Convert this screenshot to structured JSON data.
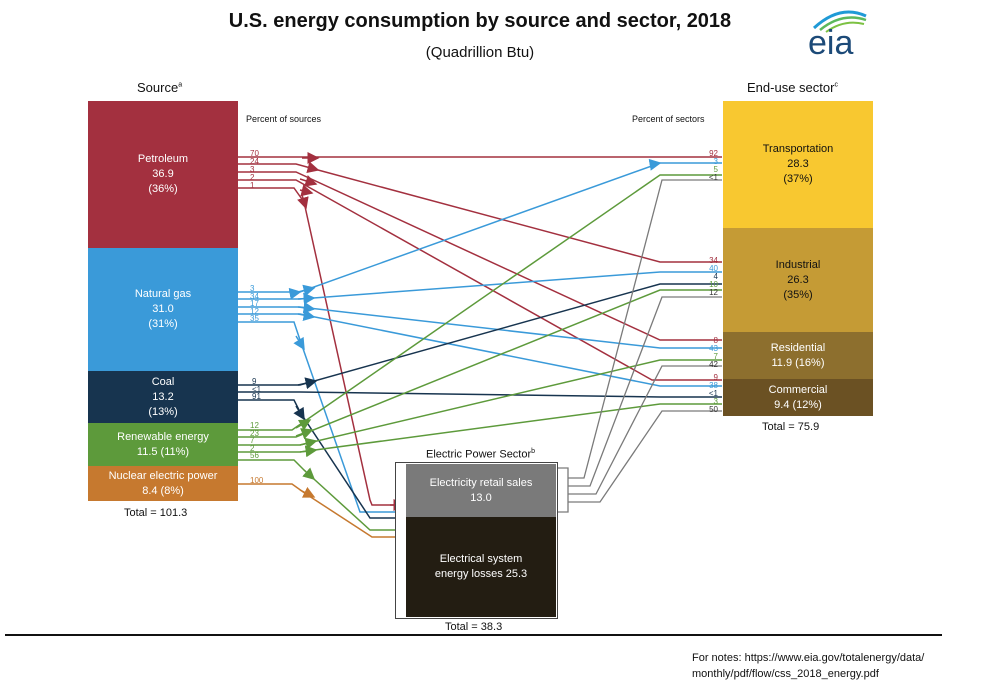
{
  "title": "U.S. energy consumption by source and sector, 2018",
  "subtitle": "(Quadrillion Btu)",
  "logo_text": "eia",
  "source_header": "Source",
  "source_header_sup": "a",
  "sector_header": "End-use sector",
  "sector_header_sup": "c",
  "percent_sources_label": "Percent of sources",
  "percent_sectors_label": "Percent of sectors",
  "power_header": "Electric Power Sector",
  "power_header_sup": "b",
  "sources": [
    {
      "name": "Petroleum",
      "value": "36.9",
      "pct": "(36%)",
      "color": "#a3303f"
    },
    {
      "name": "Natural gas",
      "value": "31.0",
      "pct": "(31%)",
      "color": "#3a9ad9"
    },
    {
      "name": "Coal",
      "value": "13.2",
      "pct": "(13%)",
      "color": "#17344f"
    },
    {
      "name": "Renewable energy",
      "value": "11.5 (11%)",
      "pct": "",
      "color": "#5d9a3b"
    },
    {
      "name": "Nuclear electric power",
      "value": "8.4 (8%)",
      "pct": "",
      "color": "#c6792f"
    }
  ],
  "sectors": [
    {
      "name": "Transportation",
      "value": "28.3",
      "pct": "(37%)",
      "color": "#f8c830"
    },
    {
      "name": "Industrial",
      "value": "26.3",
      "pct": "(35%)",
      "color": "#c59b35"
    },
    {
      "name": "Residential",
      "value": "11.9 (16%)",
      "pct": "",
      "color": "#8d6f2e"
    },
    {
      "name": "Commercial",
      "value": "9.4 (12%)",
      "pct": "",
      "color": "#6b5123"
    }
  ],
  "retail": {
    "name": "Electricity retail sales",
    "value": "13.0",
    "color": "#7a7a7a"
  },
  "losses": {
    "name": "Electrical system",
    "name2": "energy losses  25.3",
    "color": "#231d12"
  },
  "source_total": "Total = 101.3",
  "sector_total": "Total = 75.9",
  "power_total": "Total = 38.3",
  "source_percents": [
    [
      "70",
      "24",
      "3",
      "2",
      "1"
    ],
    [
      "3",
      "34",
      "17",
      "12",
      "35"
    ],
    [
      "9",
      "<1",
      "91"
    ],
    [
      "12",
      "23",
      "7",
      "2",
      "56"
    ],
    [
      "100"
    ]
  ],
  "sector_percents": [
    [
      "92",
      "3",
      "5",
      "<1"
    ],
    [
      "34",
      "40",
      "4",
      "10",
      "12"
    ],
    [
      "8",
      "43",
      "7",
      "42"
    ],
    [
      "9",
      "38",
      "<1",
      "3",
      "50"
    ]
  ],
  "notes_line1": "For notes: https://www.eia.gov/totalenergy/data/",
  "notes_line2": "monthly/pdf/flow/css_2018_energy.pdf",
  "colors": {
    "petroleum": "#a3303f",
    "gas": "#3a9ad9",
    "coal": "#17344f",
    "renewable": "#5d9a3b",
    "nuclear": "#c6792f",
    "electric": "#7a7a7a"
  }
}
